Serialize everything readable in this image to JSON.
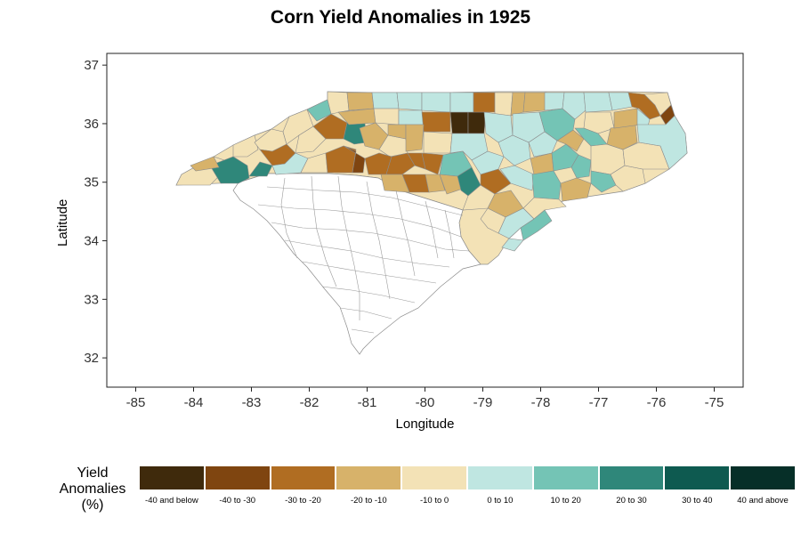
{
  "title": "Corn Yield Anomalies in 1925",
  "axes": {
    "xlabel": "Longitude",
    "ylabel": "Latitude",
    "xticks": [
      "-85",
      "-84",
      "-83",
      "-82",
      "-81",
      "-80",
      "-79",
      "-78",
      "-77",
      "-76",
      "-75"
    ],
    "yticks": [
      "37",
      "36",
      "35",
      "34",
      "33",
      "32"
    ],
    "xlim": [
      -85.5,
      -74.5
    ],
    "ylim": [
      31.5,
      37.2
    ]
  },
  "legend": {
    "title_lines": [
      "Yield",
      "Anomalies",
      "(%)"
    ],
    "classes": [
      {
        "label": "-40 and below",
        "color": "#3f2a0c"
      },
      {
        "label": "-40 to -30",
        "color": "#7f4510"
      },
      {
        "label": "-30 to -20",
        "color": "#b06d22"
      },
      {
        "label": "-20 to -10",
        "color": "#d7b26a"
      },
      {
        "label": "-10 to 0",
        "color": "#f3e2b6"
      },
      {
        "label": "0 to 10",
        "color": "#bfe6e1"
      },
      {
        "label": "10 to 20",
        "color": "#74c4b5"
      },
      {
        "label": "20 to 30",
        "color": "#2f877a"
      },
      {
        "label": "30 to 40",
        "color": "#0e5a50"
      },
      {
        "label": "40 and above",
        "color": "#062f28"
      }
    ]
  },
  "map": {
    "region": "North Carolina counties",
    "nodata_color": "#ffffff",
    "border_color": "#8c8c8c"
  }
}
